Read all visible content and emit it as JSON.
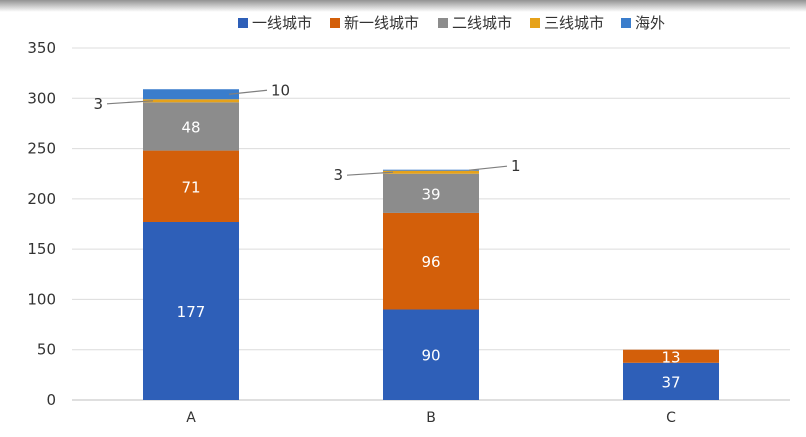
{
  "chart_data": {
    "type": "bar",
    "stacked": true,
    "title": "",
    "xlabel": "",
    "ylabel": "",
    "categories": [
      "A",
      "B",
      "C"
    ],
    "ylim": [
      0,
      350
    ],
    "yticks": [
      0,
      50,
      100,
      150,
      200,
      250,
      300,
      350
    ],
    "grid": true,
    "legend_position": "top",
    "series": [
      {
        "name": "一线城市",
        "color": "#2E5FB8",
        "values": [
          177,
          90,
          37
        ]
      },
      {
        "name": "新一线城市",
        "color": "#D35F0A",
        "values": [
          71,
          96,
          13
        ]
      },
      {
        "name": "二线城市",
        "color": "#8C8C8C",
        "values": [
          48,
          39,
          0
        ]
      },
      {
        "name": "三线城市",
        "color": "#E6A21A",
        "values": [
          3,
          3,
          0
        ]
      },
      {
        "name": "海外",
        "color": "#3A7DCC",
        "values": [
          10,
          1,
          0
        ]
      }
    ],
    "data_labels": [
      [
        "177",
        "90",
        "37"
      ],
      [
        "71",
        "96",
        "13"
      ],
      [
        "48",
        "39",
        ""
      ],
      [
        "3",
        "3",
        ""
      ],
      [
        "10",
        "1",
        ""
      ]
    ]
  }
}
